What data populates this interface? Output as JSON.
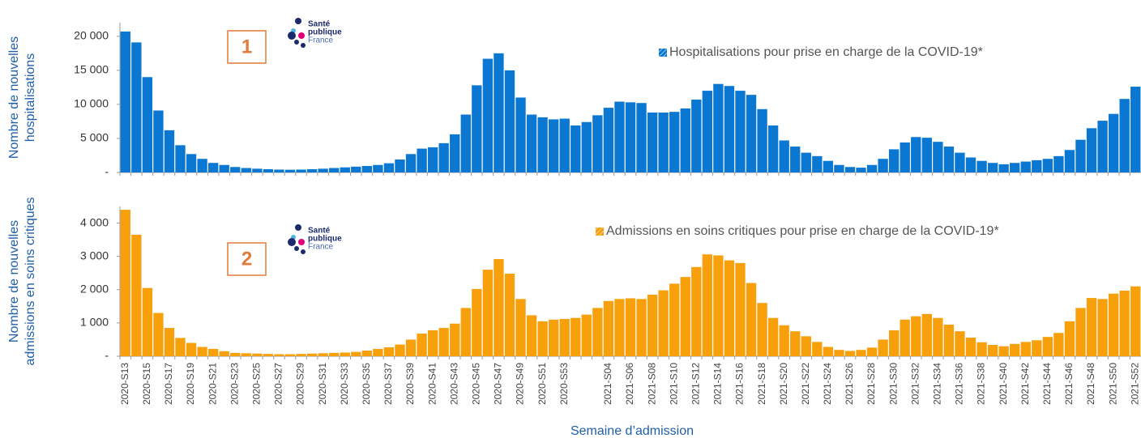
{
  "chart_data": [
    {
      "type": "bar",
      "label_number": "1",
      "color": "#0a78d2",
      "ylabel": [
        "Nombre de nouvelles",
        "hospitalisations"
      ],
      "legend": "Hospitalisations pour prise en charge de la COVID-19*",
      "logo": [
        "Santé",
        "publique",
        "France"
      ],
      "ylim": [
        0,
        22000
      ],
      "yticks": [
        {
          "value": 0,
          "label": "-"
        },
        {
          "value": 5000,
          "label": "5 000"
        },
        {
          "value": 10000,
          "label": "10 000"
        },
        {
          "value": 15000,
          "label": "15 000"
        },
        {
          "value": 20000,
          "label": "20 000"
        }
      ],
      "values": [
        20700,
        19100,
        14000,
        9100,
        6200,
        4000,
        2700,
        2000,
        1400,
        1100,
        800,
        650,
        550,
        480,
        420,
        400,
        420,
        480,
        550,
        650,
        750,
        850,
        950,
        1100,
        1350,
        1900,
        2700,
        3500,
        3700,
        4300,
        5600,
        8500,
        12800,
        16700,
        17500,
        15000,
        11000,
        8500,
        8100,
        7800,
        7900,
        6900,
        7400,
        8400,
        9500,
        10400,
        10300,
        10200,
        8800,
        8800,
        8900,
        9400,
        10700,
        12000,
        13000,
        12700,
        12000,
        11400,
        9300,
        6900,
        4700,
        3800,
        2900,
        2400,
        1700,
        1100,
        800,
        700,
        1100,
        2000,
        3400,
        4400,
        5200,
        5100,
        4500,
        3800,
        2900,
        2200,
        1700,
        1400,
        1200,
        1400,
        1600,
        1800,
        2000,
        2400,
        3300,
        4800,
        6500,
        7600,
        8600,
        10800,
        12600
      ]
    },
    {
      "type": "bar",
      "label_number": "2",
      "color": "#f7a00b",
      "ylabel": [
        "Nombre de nouvelles",
        "admissions en soins critiques"
      ],
      "legend": "Admissions en soins critiques pour prise en charge de la COVID-19*",
      "logo": [
        "Santé",
        "publique",
        "France"
      ],
      "xlabel": "Semaine d’admission",
      "ylim": [
        0,
        4500
      ],
      "yticks": [
        {
          "value": 0,
          "label": "-"
        },
        {
          "value": 1000,
          "label": "1 000"
        },
        {
          "value": 2000,
          "label": "2 000"
        },
        {
          "value": 3000,
          "label": "3 000"
        },
        {
          "value": 4000,
          "label": "4 000"
        }
      ],
      "categories": [
        "2020-S13",
        null,
        "2020-S15",
        null,
        "2020-S17",
        null,
        "2020-S19",
        null,
        "2020-S21",
        null,
        "2020-S23",
        null,
        "2020-S25",
        null,
        "2020-S27",
        null,
        "2020-S29",
        null,
        "2020-S31",
        null,
        "2020-S33",
        null,
        "2020-S35",
        null,
        "2020-S37",
        null,
        "2020-S39",
        null,
        "2020-S41",
        null,
        "2020-S43",
        null,
        "2020-S45",
        null,
        "2020-S47",
        null,
        "2020-S49",
        null,
        "2020-S51",
        null,
        "2020-S53",
        null,
        null,
        null,
        "2021-S04",
        null,
        "2021-S06",
        null,
        "2021-S08",
        null,
        "2021-S10",
        null,
        "2021-S12",
        null,
        "2021-S14",
        null,
        "2021-S16",
        null,
        "2021-S18",
        null,
        "2021-S20",
        null,
        "2021-S22",
        null,
        "2021-S24",
        null,
        "2021-S26",
        null,
        "2021-S28",
        null,
        "2021-S30",
        null,
        "2021-S32",
        null,
        "2021-S34",
        null,
        "2021-S36",
        null,
        "2021-S38",
        null,
        "2021-S40",
        null,
        "2021-S42",
        null,
        "2021-S44",
        null,
        "2021-S46",
        null,
        "2021-S48",
        null,
        "2021-S50",
        null,
        "2021-S52"
      ],
      "values": [
        4400,
        3650,
        2050,
        1300,
        850,
        550,
        400,
        280,
        220,
        150,
        100,
        90,
        80,
        70,
        60,
        60,
        70,
        80,
        90,
        100,
        110,
        130,
        170,
        220,
        270,
        350,
        500,
        680,
        780,
        850,
        980,
        1450,
        2020,
        2600,
        2920,
        2480,
        1720,
        1230,
        1050,
        1100,
        1120,
        1150,
        1250,
        1450,
        1660,
        1720,
        1740,
        1720,
        1850,
        1980,
        2180,
        2380,
        2680,
        3060,
        3030,
        2880,
        2800,
        2200,
        1600,
        1150,
        930,
        750,
        600,
        430,
        280,
        190,
        160,
        190,
        260,
        500,
        780,
        1100,
        1200,
        1270,
        1150,
        950,
        750,
        560,
        420,
        340,
        300,
        370,
        430,
        480,
        580,
        700,
        1050,
        1450,
        1750,
        1720,
        1880,
        1970,
        2100
      ]
    }
  ]
}
